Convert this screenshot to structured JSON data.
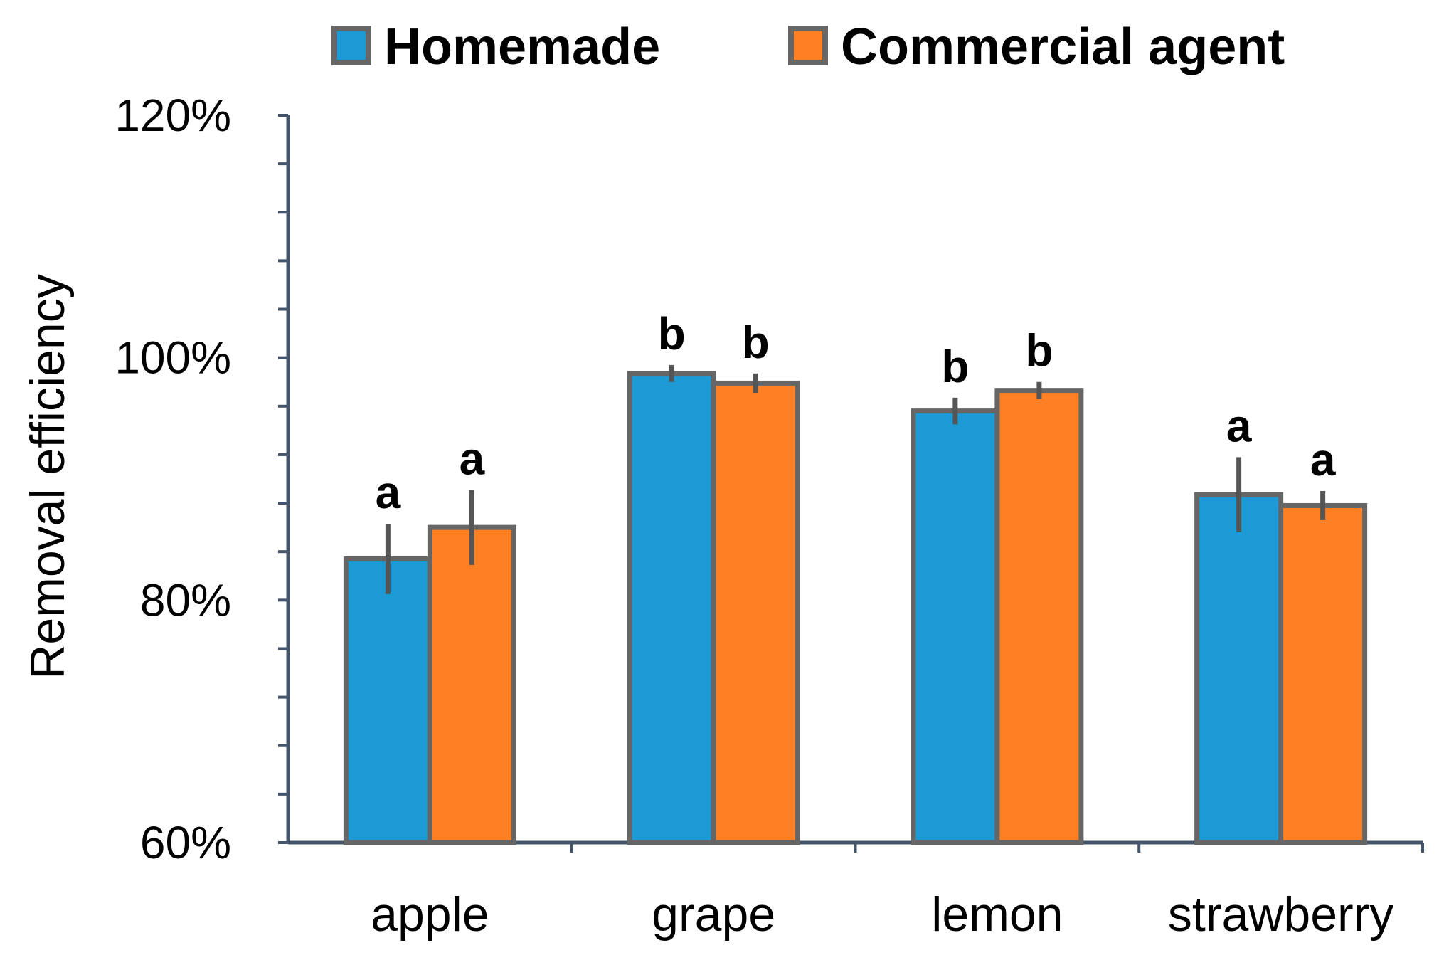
{
  "chart_data": {
    "type": "bar",
    "ylabel": "Removal efficiency",
    "ylim": [
      0.6,
      1.2
    ],
    "y_ticks": [
      {
        "value": 0.6,
        "label": "60%"
      },
      {
        "value": 0.8,
        "label": "80%"
      },
      {
        "value": 1.0,
        "label": "100%"
      },
      {
        "value": 1.2,
        "label": "120%"
      }
    ],
    "y_minor_step": 0.04,
    "categories": [
      "apple",
      "grape",
      "lemon",
      "strawberry"
    ],
    "legend_position": "top",
    "series": [
      {
        "name": "Homemade",
        "color": "#1b9ad6",
        "values": [
          0.834,
          0.987,
          0.956,
          0.887
        ],
        "errors": [
          0.029,
          0.007,
          0.011,
          0.031
        ],
        "labels": [
          "a",
          "b",
          "b",
          "a"
        ]
      },
      {
        "name": "Commercial agent",
        "color": "#ff8022",
        "values": [
          0.86,
          0.979,
          0.973,
          0.878
        ],
        "errors": [
          0.031,
          0.008,
          0.007,
          0.012
        ],
        "labels": [
          "a",
          "b",
          "b",
          "a"
        ]
      }
    ],
    "bar_edge_color": "#666666",
    "axis_color": "#44546a"
  }
}
